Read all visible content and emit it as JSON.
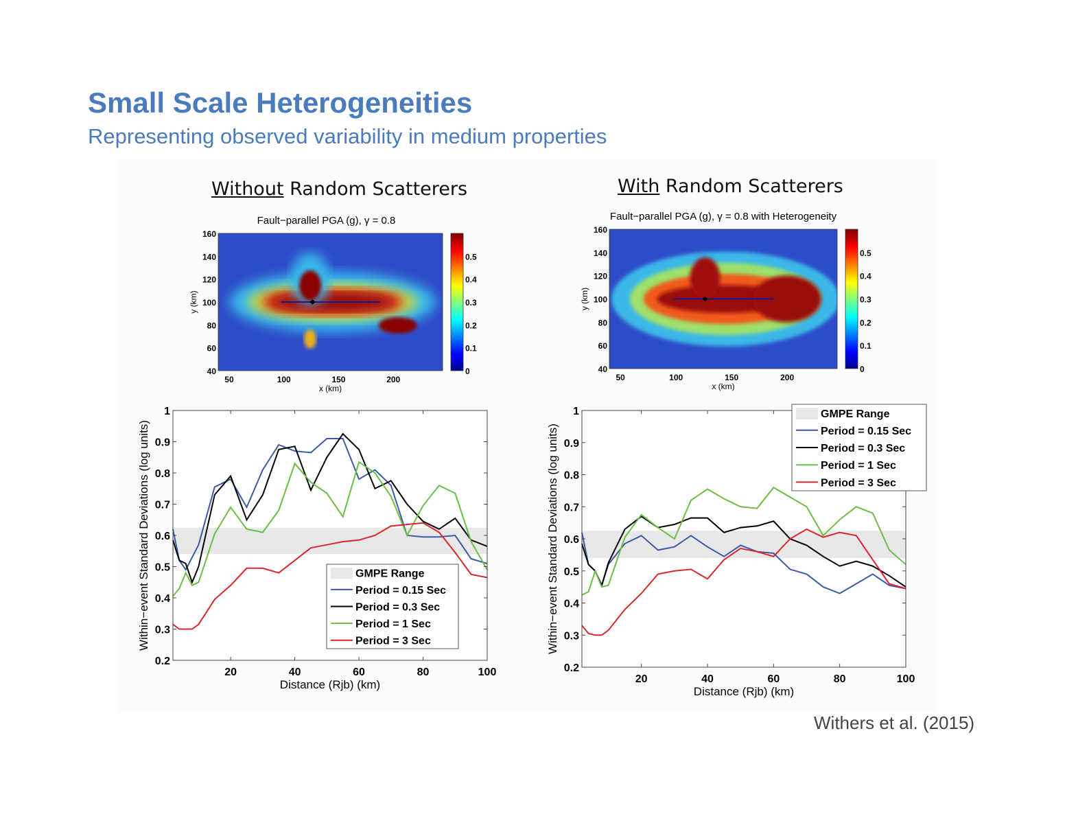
{
  "slide": {
    "title": "Small Scale Heterogeneities",
    "subtitle": "Representing observed variability in medium properties",
    "citation": "Withers et al. (2015)"
  },
  "panels": [
    {
      "title_underlined": "Without",
      "title_rest": " Random Scatterers",
      "map": {
        "title": "Fault−parallel PGA (g), γ = 0.8",
        "xlabel": "x (km)",
        "ylabel": "y (km)",
        "xticks": [
          "50",
          "100",
          "150",
          "200"
        ],
        "yticks": [
          "160",
          "140",
          "120",
          "100",
          "80",
          "60",
          "40"
        ],
        "colorbar_ticks": [
          "0.5",
          "0.4",
          "0.3",
          "0.2",
          "0.1",
          "0"
        ],
        "colormap": "jet",
        "clim": [
          0,
          0.6
        ]
      }
    },
    {
      "title_underlined": "With",
      "title_rest": " Random Scatterers",
      "map": {
        "title": "Fault−parallel PGA (g), γ = 0.8 with Heterogeneity",
        "xlabel": "x (km)",
        "ylabel": "y (km)",
        "xticks": [
          "50",
          "100",
          "150",
          "200"
        ],
        "yticks": [
          "160",
          "140",
          "120",
          "100",
          "80",
          "60",
          "40"
        ],
        "colorbar_ticks": [
          "0.5",
          "0.4",
          "0.3",
          "0.2",
          "0.1",
          "0"
        ],
        "colormap": "jet",
        "clim": [
          0,
          0.6
        ]
      }
    }
  ],
  "colors": {
    "title": "#4a7bbd",
    "p015": "#3b5ba5",
    "p03": "#000000",
    "p1": "#6cbd45",
    "p3": "#d9262b",
    "gmpe": "#e8e8e8"
  },
  "chart_data": [
    {
      "type": "line",
      "xlabel": "Distance (Rjb) (km)",
      "ylabel": "Within−event Standard Deviations (log units)",
      "xlim": [
        2,
        100
      ],
      "ylim": [
        0.2,
        1
      ],
      "xticks": [
        "20",
        "40",
        "60",
        "80",
        "100"
      ],
      "yticks": [
        "0.2",
        "0.3",
        "0.4",
        "0.5",
        "0.6",
        "0.7",
        "0.8",
        "0.9",
        "1"
      ],
      "grid": false,
      "legend": "bottom-right",
      "gmpe_range": {
        "name": "GMPE Range",
        "low": 0.54,
        "high": 0.625
      },
      "x": [
        2,
        4,
        6,
        8,
        10,
        15,
        20,
        25,
        30,
        35,
        40,
        45,
        50,
        55,
        60,
        65,
        70,
        75,
        80,
        85,
        90,
        95,
        100
      ],
      "series": [
        {
          "name": "Period = 0.15 Sec",
          "color": "#3b5ba5",
          "values": [
            0.62,
            0.52,
            0.49,
            0.53,
            0.57,
            0.755,
            0.78,
            0.69,
            0.81,
            0.89,
            0.87,
            0.865,
            0.91,
            0.91,
            0.78,
            0.81,
            0.76,
            0.6,
            0.595,
            0.595,
            0.6,
            0.525,
            0.51
          ]
        },
        {
          "name": "Period = 0.3 Sec",
          "color": "#000000",
          "values": [
            0.585,
            0.52,
            0.51,
            0.45,
            0.5,
            0.73,
            0.79,
            0.65,
            0.73,
            0.875,
            0.885,
            0.745,
            0.85,
            0.925,
            0.875,
            0.75,
            0.775,
            0.7,
            0.645,
            0.62,
            0.655,
            0.585,
            0.565
          ]
        },
        {
          "name": "Period = 1 Sec",
          "color": "#6cbd45",
          "values": [
            0.405,
            0.43,
            0.48,
            0.44,
            0.45,
            0.605,
            0.69,
            0.62,
            0.61,
            0.68,
            0.83,
            0.77,
            0.735,
            0.66,
            0.835,
            0.8,
            0.725,
            0.6,
            0.695,
            0.76,
            0.735,
            0.58,
            0.49
          ]
        },
        {
          "name": "Period = 3 Sec",
          "color": "#d9262b",
          "values": [
            0.315,
            0.3,
            0.3,
            0.3,
            0.315,
            0.395,
            0.44,
            0.495,
            0.495,
            0.48,
            0.52,
            0.56,
            0.57,
            0.58,
            0.585,
            0.6,
            0.63,
            0.635,
            0.64,
            0.61,
            0.545,
            0.475,
            0.465
          ]
        }
      ]
    },
    {
      "type": "line",
      "xlabel": "Distance (Rjb) (km)",
      "ylabel": "Within−event Standard Deviations (log units)",
      "xlim": [
        2,
        100
      ],
      "ylim": [
        0.2,
        1
      ],
      "xticks": [
        "20",
        "40",
        "60",
        "80",
        "100"
      ],
      "yticks": [
        "0.2",
        "0.3",
        "0.4",
        "0.5",
        "0.6",
        "0.7",
        "0.8",
        "0.9",
        "1"
      ],
      "grid": false,
      "legend": "top-right",
      "gmpe_range": {
        "name": "GMPE Range",
        "low": 0.54,
        "high": 0.625
      },
      "x": [
        2,
        4,
        6,
        8,
        10,
        15,
        20,
        25,
        30,
        35,
        40,
        45,
        50,
        55,
        60,
        65,
        70,
        75,
        80,
        85,
        90,
        95,
        100
      ],
      "series": [
        {
          "name": "Period = 0.15 Sec",
          "color": "#3b5ba5",
          "values": [
            0.62,
            0.52,
            0.5,
            0.455,
            0.52,
            0.585,
            0.61,
            0.565,
            0.575,
            0.61,
            0.575,
            0.545,
            0.58,
            0.56,
            0.555,
            0.505,
            0.49,
            0.45,
            0.43,
            0.46,
            0.49,
            0.455,
            0.445
          ]
        },
        {
          "name": "Period = 0.3 Sec",
          "color": "#000000",
          "values": [
            0.585,
            0.52,
            0.5,
            0.455,
            0.525,
            0.63,
            0.67,
            0.635,
            0.645,
            0.665,
            0.665,
            0.62,
            0.635,
            0.64,
            0.655,
            0.6,
            0.58,
            0.545,
            0.515,
            0.53,
            0.515,
            0.485,
            0.45
          ]
        },
        {
          "name": "Period = 1 Sec",
          "color": "#6cbd45",
          "values": [
            0.425,
            0.435,
            0.5,
            0.45,
            0.455,
            0.605,
            0.675,
            0.635,
            0.6,
            0.72,
            0.755,
            0.725,
            0.7,
            0.695,
            0.76,
            0.73,
            0.7,
            0.61,
            0.66,
            0.7,
            0.68,
            0.565,
            0.52
          ]
        },
        {
          "name": "Period = 3 Sec",
          "color": "#d9262b",
          "values": [
            0.33,
            0.305,
            0.3,
            0.3,
            0.315,
            0.38,
            0.43,
            0.49,
            0.5,
            0.505,
            0.475,
            0.535,
            0.57,
            0.56,
            0.545,
            0.6,
            0.63,
            0.605,
            0.62,
            0.61,
            0.535,
            0.46,
            0.445
          ]
        }
      ]
    }
  ]
}
